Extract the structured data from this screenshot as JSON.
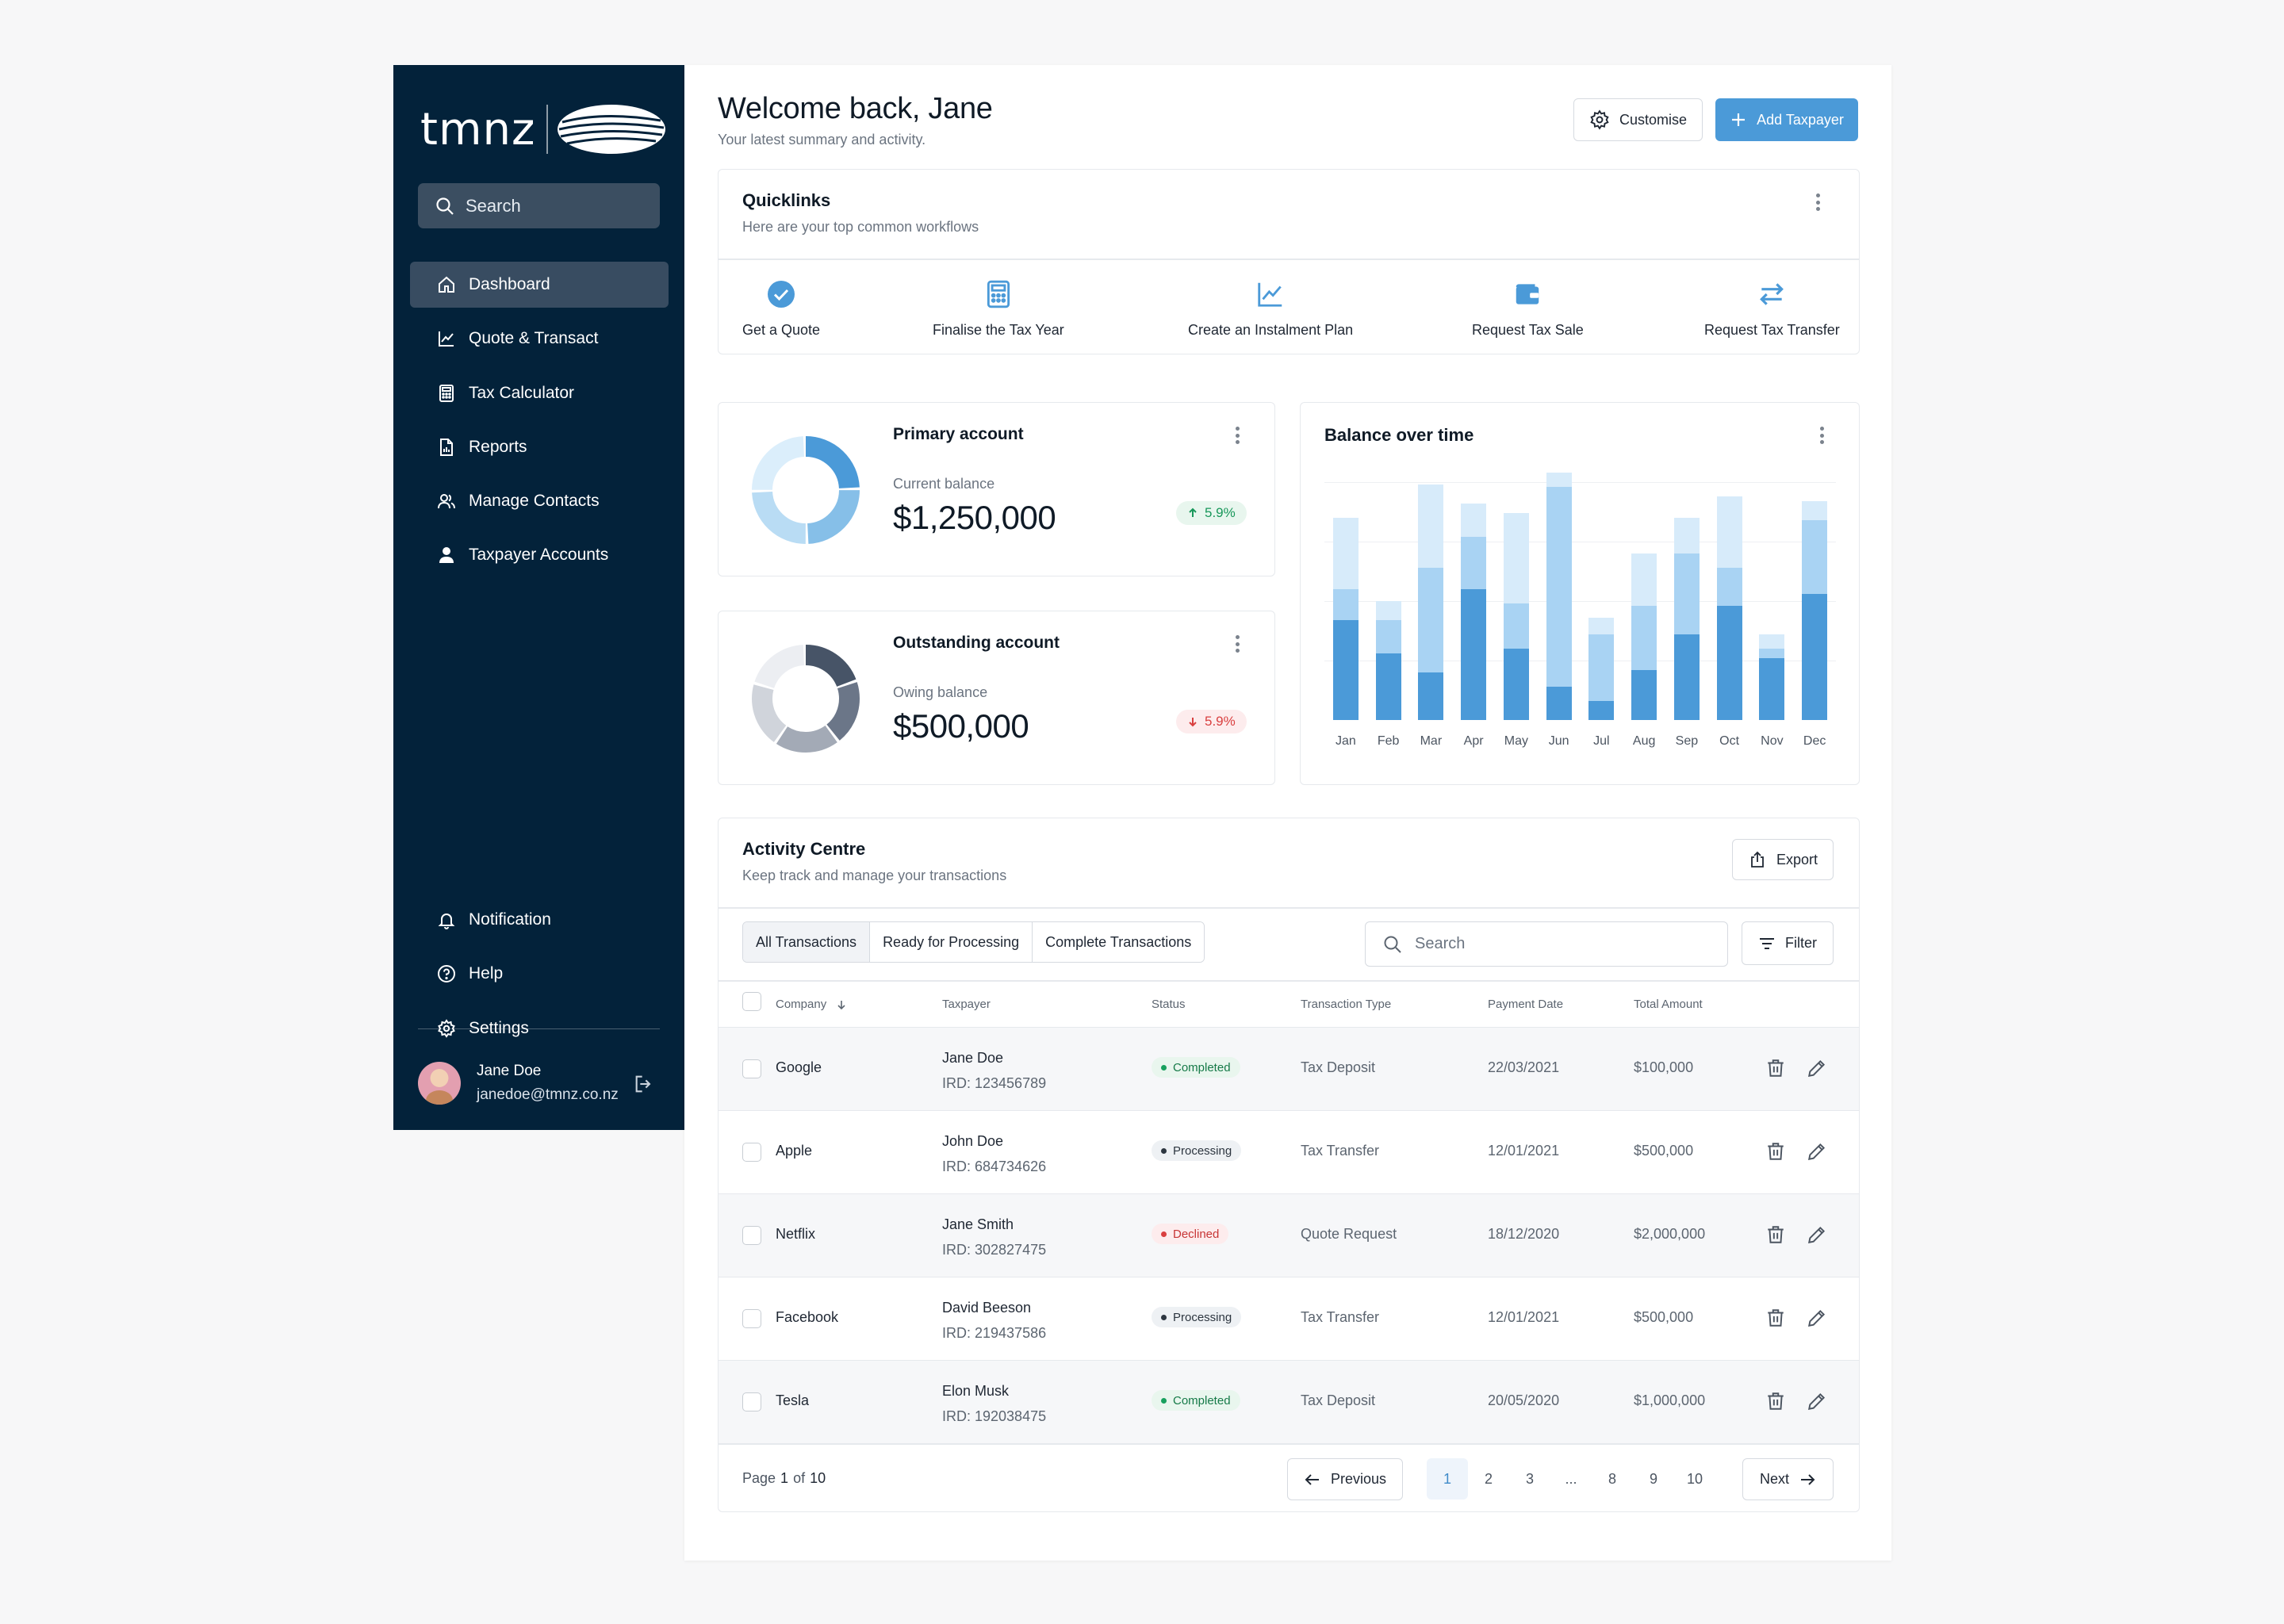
{
  "brand": {
    "logo_text": "tmnz"
  },
  "sidebar": {
    "search_label": "Search",
    "nav": [
      {
        "label": "Dashboard",
        "icon": "home-icon",
        "active": true
      },
      {
        "label": "Quote & Transact",
        "icon": "line-chart-icon"
      },
      {
        "label": "Tax Calculator",
        "icon": "calculator-icon"
      },
      {
        "label": "Reports",
        "icon": "report-icon"
      },
      {
        "label": "Manage Contacts",
        "icon": "contacts-icon"
      },
      {
        "label": "Taxpayer Accounts",
        "icon": "person-icon"
      }
    ],
    "bottom_nav": [
      {
        "label": "Notification",
        "icon": "bell-icon"
      },
      {
        "label": "Help",
        "icon": "help-icon"
      },
      {
        "label": "Settings",
        "icon": "gear-icon"
      }
    ],
    "user": {
      "name": "Jane Doe",
      "email": "janedoe@tmnz.co.nz"
    }
  },
  "header": {
    "title": "Welcome back, Jane",
    "subtitle": "Your latest summary and activity.",
    "customise_label": "Customise",
    "add_taxpayer_label": "Add Taxpayer"
  },
  "quicklinks": {
    "title": "Quicklinks",
    "subtitle": "Here are your top common workflows",
    "items": [
      {
        "label": "Get a Quote",
        "icon": "check-circle-icon"
      },
      {
        "label": "Finalise the Tax Year",
        "icon": "calculator-icon"
      },
      {
        "label": "Create an Instalment Plan",
        "icon": "line-chart-icon"
      },
      {
        "label": "Request Tax Sale",
        "icon": "wallet-icon"
      },
      {
        "label": "Request Tax Transfer",
        "icon": "transfer-arrows-icon"
      }
    ]
  },
  "primary_account": {
    "title": "Primary account",
    "balance_label": "Current balance",
    "balance": "$1,250,000",
    "change": "5.9%",
    "change_direction": "up",
    "donut_colors": [
      "#4b9ad8",
      "#86bfe8",
      "#b9dcf4",
      "#dbeefb"
    ]
  },
  "outstanding_account": {
    "title": "Outstanding account",
    "balance_label": "Owing balance",
    "balance": "$500,000",
    "change": "5.9%",
    "change_direction": "down",
    "donut_colors": [
      "#475467",
      "#6b7688",
      "#a3aab6",
      "#d0d4db",
      "#eceef2"
    ]
  },
  "balance_chart": {
    "title": "Balance over time",
    "colors": [
      "#4b9ad8",
      "#a9d3f3",
      "#d7ebfa"
    ]
  },
  "chart_data": {
    "type": "bar",
    "stacked": true,
    "categories": [
      "Jan",
      "Feb",
      "Mar",
      "Apr",
      "May",
      "Jun",
      "Jul",
      "Aug",
      "Sep",
      "Oct",
      "Nov",
      "Dec"
    ],
    "series": [
      {
        "values": [
          42,
          28,
          20,
          55,
          30,
          14,
          8,
          21,
          36,
          48,
          26,
          53
        ]
      },
      {
        "values": [
          13,
          14,
          44,
          22,
          19,
          84,
          28,
          27,
          34,
          16,
          4,
          31
        ]
      },
      {
        "values": [
          30,
          8,
          35,
          14,
          38,
          6,
          7,
          22,
          15,
          30,
          6,
          8
        ]
      }
    ],
    "ylim": [
      0,
      100
    ],
    "grid": true,
    "title": "Balance over time"
  },
  "activity": {
    "title": "Activity Centre",
    "subtitle": "Keep track and manage your transactions",
    "export_label": "Export",
    "tabs": [
      "All Transactions",
      "Ready for Processing",
      "Complete Transactions"
    ],
    "search_placeholder": "Search",
    "filter_label": "Filter",
    "columns": [
      "Company",
      "Taxpayer",
      "Status",
      "Transaction Type",
      "Payment Date",
      "Total Amount"
    ],
    "rows": [
      {
        "company": "Google",
        "name": "Jane Doe",
        "ird": "IRD: 123456789",
        "status": "Completed",
        "type": "Tax Deposit",
        "date": "22/03/2021",
        "amount": "$100,000"
      },
      {
        "company": "Apple",
        "name": "John Doe",
        "ird": "IRD: 684734626",
        "status": "Processing",
        "type": "Tax Transfer",
        "date": "12/01/2021",
        "amount": "$500,000"
      },
      {
        "company": "Netflix",
        "name": "Jane Smith",
        "ird": "IRD: 302827475",
        "status": "Declined",
        "type": "Quote Request",
        "date": "18/12/2020",
        "amount": "$2,000,000"
      },
      {
        "company": "Facebook",
        "name": "David Beeson",
        "ird": "IRD: 219437586",
        "status": "Processing",
        "type": "Tax Transfer",
        "date": "12/01/2021",
        "amount": "$500,000"
      },
      {
        "company": "Tesla",
        "name": "Elon Musk",
        "ird": "IRD: 192038475",
        "status": "Completed",
        "type": "Tax Deposit",
        "date": "20/05/2020",
        "amount": "$1,000,000"
      }
    ],
    "pagination": {
      "page_prefix": "Page",
      "current": "1",
      "of_label": "of",
      "total": "10",
      "previous_label": "Previous",
      "next_label": "Next",
      "pages": [
        "1",
        "2",
        "3",
        "...",
        "8",
        "9",
        "10"
      ]
    }
  }
}
